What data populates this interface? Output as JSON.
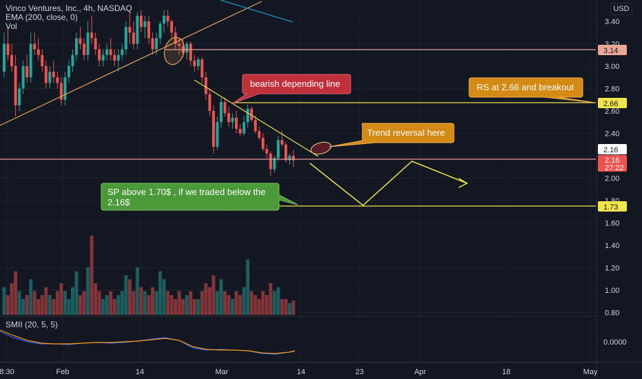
{
  "header": {
    "symbol_line": "Vinco Ventures, Inc., 4h, NASDAQ",
    "ema_line": "EMA (200, close, 0)",
    "vol_line": "Vol",
    "currency_button": "USD"
  },
  "indicator": {
    "label": "SMII (20, 5, 5)",
    "value_label": "0.0000"
  },
  "price_axis": {
    "ticks": [
      "3.40",
      "3.20",
      "3.00",
      "2.80",
      "2.60",
      "2.40",
      "2.20",
      "2.00",
      "1.80",
      "1.60",
      "1.40",
      "1.20",
      "1.00",
      "0.80"
    ],
    "badges": {
      "level_314": "3.14",
      "level_266": "2.66",
      "level_216_white": "2.16",
      "last_price": "2.16",
      "countdown": "27:22",
      "level_173": "1.73"
    }
  },
  "time_axis": [
    "8:30",
    "Feb",
    "14",
    "Mar",
    "14",
    "23",
    "Apr",
    "18",
    "May"
  ],
  "annotations": {
    "bearish": "bearish depending line",
    "rs": "RS at 2.66 and breakout",
    "trend": "Trend reversal here",
    "sp_line1": "SP above 1.70$ , if we traded below the",
    "sp_line2": "2.16$"
  },
  "colors": {
    "background": "#131722",
    "up": "#26a69a",
    "down": "#ef5350",
    "level_line": "#f0e64c",
    "resistance_orange": "#e8a65b",
    "callout_red": "#c0303a",
    "callout_orange": "#d48a14",
    "callout_green": "#4a9a3a"
  },
  "chart_data": {
    "type": "candlestick",
    "ticker": "Vinco Ventures, Inc.",
    "interval": "4h",
    "exchange": "NASDAQ",
    "y_range": [
      0.8,
      3.5
    ],
    "horizontal_levels": [
      3.14,
      2.66,
      2.16,
      1.73
    ],
    "candles": [
      [
        2.95,
        3.3,
        2.9,
        3.2
      ],
      [
        3.2,
        3.35,
        3.05,
        3.1
      ],
      [
        3.1,
        3.2,
        2.95,
        3.0
      ],
      [
        3.0,
        3.1,
        2.55,
        2.65
      ],
      [
        2.65,
        2.85,
        2.6,
        2.8
      ],
      [
        2.8,
        3.05,
        2.75,
        3.0
      ],
      [
        3.0,
        3.1,
        2.85,
        2.9
      ],
      [
        2.9,
        3.3,
        2.85,
        3.2
      ],
      [
        3.2,
        3.3,
        3.1,
        3.15
      ],
      [
        3.15,
        3.25,
        3.05,
        3.1
      ],
      [
        3.1,
        3.15,
        2.95,
        3.0
      ],
      [
        3.0,
        3.05,
        2.8,
        2.85
      ],
      [
        2.85,
        3.0,
        2.8,
        2.95
      ],
      [
        2.95,
        3.05,
        2.85,
        2.9
      ],
      [
        2.9,
        2.95,
        2.8,
        2.85
      ],
      [
        2.85,
        2.9,
        2.65,
        2.7
      ],
      [
        2.7,
        2.95,
        2.65,
        2.9
      ],
      [
        2.9,
        3.05,
        2.85,
        3.0
      ],
      [
        3.0,
        3.15,
        2.95,
        3.1
      ],
      [
        3.1,
        3.3,
        3.05,
        3.25
      ],
      [
        3.25,
        3.35,
        3.15,
        3.2
      ],
      [
        3.2,
        3.25,
        3.05,
        3.1
      ],
      [
        3.1,
        3.4,
        3.05,
        3.3
      ],
      [
        3.3,
        3.45,
        3.2,
        3.25
      ],
      [
        3.25,
        3.3,
        3.1,
        3.15
      ],
      [
        3.15,
        3.2,
        3.0,
        3.05
      ],
      [
        3.05,
        3.15,
        3.0,
        3.1
      ],
      [
        3.1,
        3.2,
        3.05,
        3.15
      ],
      [
        3.15,
        3.25,
        3.05,
        3.1
      ],
      [
        3.1,
        3.15,
        3.0,
        3.05
      ],
      [
        3.05,
        3.15,
        2.95,
        3.1
      ],
      [
        3.1,
        3.2,
        3.05,
        3.15
      ],
      [
        3.15,
        3.4,
        3.1,
        3.35
      ],
      [
        3.35,
        3.48,
        3.2,
        3.3
      ],
      [
        3.3,
        3.4,
        3.15,
        3.2
      ],
      [
        3.2,
        3.48,
        3.15,
        3.45
      ],
      [
        3.45,
        3.5,
        3.3,
        3.35
      ],
      [
        3.35,
        3.45,
        3.25,
        3.4
      ],
      [
        3.4,
        3.45,
        3.2,
        3.25
      ],
      [
        3.25,
        3.3,
        3.1,
        3.15
      ],
      [
        3.15,
        3.3,
        3.1,
        3.25
      ],
      [
        3.25,
        3.4,
        3.2,
        3.38
      ],
      [
        3.38,
        3.5,
        3.3,
        3.45
      ],
      [
        3.45,
        3.5,
        3.35,
        3.4
      ],
      [
        3.4,
        3.42,
        3.25,
        3.3
      ],
      [
        3.3,
        3.35,
        3.15,
        3.2
      ],
      [
        3.2,
        3.25,
        3.1,
        3.18
      ],
      [
        3.18,
        3.24,
        3.08,
        3.12
      ],
      [
        3.12,
        3.22,
        3.06,
        3.2
      ],
      [
        3.2,
        3.22,
        3.0,
        3.05
      ],
      [
        3.05,
        3.1,
        2.95,
        3.0
      ],
      [
        3.0,
        3.08,
        2.96,
        3.06
      ],
      [
        3.06,
        3.08,
        2.85,
        2.9
      ],
      [
        2.9,
        2.95,
        2.7,
        2.75
      ],
      [
        2.75,
        2.8,
        2.55,
        2.6
      ],
      [
        2.6,
        2.65,
        2.22,
        2.28
      ],
      [
        2.28,
        2.55,
        2.25,
        2.5
      ],
      [
        2.5,
        2.72,
        2.45,
        2.68
      ],
      [
        2.68,
        2.72,
        2.55,
        2.58
      ],
      [
        2.58,
        2.64,
        2.46,
        2.5
      ],
      [
        2.5,
        2.58,
        2.44,
        2.54
      ],
      [
        2.54,
        2.6,
        2.4,
        2.44
      ],
      [
        2.44,
        2.48,
        2.38,
        2.4
      ],
      [
        2.4,
        2.55,
        2.38,
        2.5
      ],
      [
        2.5,
        2.66,
        2.45,
        2.62
      ],
      [
        2.62,
        2.64,
        2.5,
        2.52
      ],
      [
        2.52,
        2.56,
        2.4,
        2.42
      ],
      [
        2.42,
        2.46,
        2.34,
        2.36
      ],
      [
        2.36,
        2.4,
        2.24,
        2.26
      ],
      [
        2.26,
        2.3,
        2.18,
        2.22
      ],
      [
        2.22,
        2.24,
        2.02,
        2.08
      ],
      [
        2.08,
        2.2,
        2.05,
        2.18
      ],
      [
        2.18,
        2.38,
        2.15,
        2.34
      ],
      [
        2.34,
        2.42,
        2.28,
        2.3
      ],
      [
        2.3,
        2.32,
        2.14,
        2.16
      ],
      [
        2.16,
        2.22,
        2.12,
        2.2
      ],
      [
        2.2,
        2.25,
        2.1,
        2.16
      ]
    ],
    "volume": [
      0.35,
      0.25,
      0.4,
      0.55,
      0.3,
      0.2,
      0.25,
      0.45,
      0.3,
      0.2,
      0.25,
      0.35,
      0.25,
      0.2,
      0.3,
      0.4,
      0.3,
      0.2,
      0.35,
      0.55,
      0.25,
      0.3,
      0.6,
      1.0,
      0.4,
      0.3,
      0.2,
      0.25,
      0.3,
      0.2,
      0.25,
      0.3,
      0.5,
      0.45,
      0.3,
      0.6,
      0.35,
      0.3,
      0.25,
      0.35,
      0.3,
      0.55,
      0.45,
      0.3,
      0.25,
      0.2,
      0.3,
      0.2,
      0.25,
      0.3,
      0.2,
      0.2,
      0.3,
      0.4,
      0.35,
      0.5,
      0.3,
      0.45,
      0.3,
      0.25,
      0.2,
      0.3,
      0.25,
      0.35,
      0.7,
      0.3,
      0.25,
      0.2,
      0.3,
      0.25,
      0.4,
      0.3,
      0.35,
      0.2,
      0.2,
      0.15,
      0.18
    ]
  }
}
